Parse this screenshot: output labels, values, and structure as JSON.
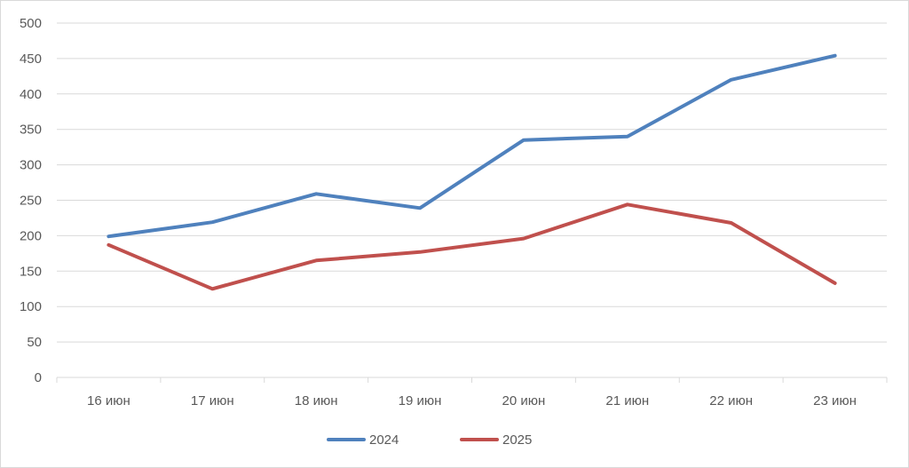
{
  "chart_data": {
    "type": "line",
    "categories": [
      "16 июн",
      "17 июн",
      "18 июн",
      "19 июн",
      "20 июн",
      "21 июн",
      "22 июн",
      "23 июн"
    ],
    "series": [
      {
        "name": "2024",
        "values": [
          199,
          219,
          259,
          239,
          335,
          340,
          420,
          454
        ],
        "color": "#4f81bd"
      },
      {
        "name": "2025",
        "values": [
          187,
          125,
          165,
          177,
          196,
          244,
          218,
          133
        ],
        "color": "#c0504d"
      }
    ],
    "ylim": [
      0,
      500
    ],
    "yticks": [
      "0",
      "50",
      "100",
      "150",
      "200",
      "250",
      "300",
      "350",
      "400",
      "450",
      "500"
    ],
    "grid": true,
    "legend": "bottom"
  }
}
